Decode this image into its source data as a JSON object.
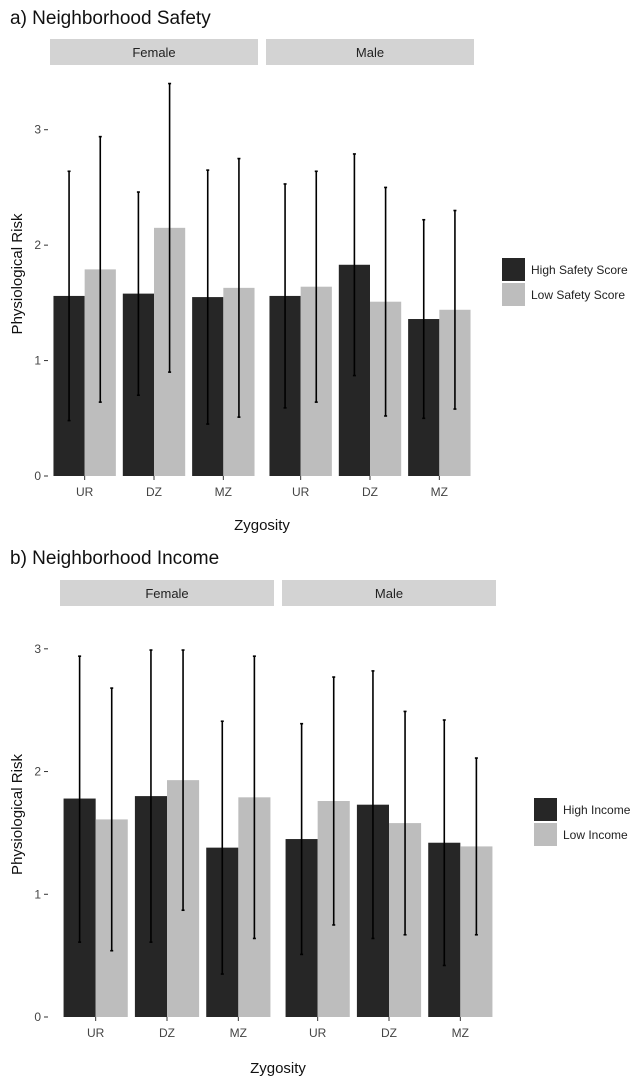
{
  "chart_data": [
    {
      "type": "bar",
      "title": "a) Neighborhood Safety",
      "xlabel": "Zygosity",
      "ylabel": "Physiological Risk",
      "ylim": [
        0,
        3.5
      ],
      "yticks": [
        "0",
        "1",
        "2",
        "3"
      ],
      "ytick_values": [
        0,
        1,
        2,
        3
      ],
      "facets": [
        "Female",
        "Male"
      ],
      "categories": [
        "UR",
        "DZ",
        "MZ"
      ],
      "grid": false,
      "legend_position": "right",
      "colors": {
        "dark": "#262626",
        "light": "#bdbdbd",
        "strip": "#d3d3d3"
      },
      "series": [
        {
          "name": "High Safety Score",
          "color": "#262626",
          "values": [
            [
              1.56,
              1.58,
              1.55
            ],
            [
              1.56,
              1.83,
              1.36
            ]
          ],
          "error_low": [
            [
              0.48,
              0.7,
              0.45
            ],
            [
              0.59,
              0.87,
              0.5
            ]
          ],
          "error_high": [
            [
              2.64,
              2.46,
              2.65
            ],
            [
              2.53,
              2.79,
              2.22
            ]
          ]
        },
        {
          "name": "Low Safety Score",
          "color": "#bdbdbd",
          "values": [
            [
              1.79,
              2.15,
              1.63
            ],
            [
              1.64,
              1.51,
              1.44
            ]
          ],
          "error_low": [
            [
              0.64,
              0.9,
              0.51
            ],
            [
              0.64,
              0.52,
              0.58
            ]
          ],
          "error_high": [
            [
              2.94,
              3.4,
              2.75
            ],
            [
              2.64,
              2.5,
              2.3
            ]
          ]
        }
      ]
    },
    {
      "type": "bar",
      "title": "b) Neighborhood Income",
      "xlabel": "Zygosity",
      "ylabel": "Physiological Risk",
      "ylim": [
        0,
        3.3
      ],
      "yticks": [
        "0",
        "1",
        "2",
        "3"
      ],
      "ytick_values": [
        0,
        1,
        2,
        3
      ],
      "facets": [
        "Female",
        "Male"
      ],
      "categories": [
        "UR",
        "DZ",
        "MZ"
      ],
      "grid": false,
      "legend_position": "right",
      "colors": {
        "dark": "#262626",
        "light": "#bdbdbd",
        "strip": "#d3d3d3"
      },
      "series": [
        {
          "name": "High Income",
          "color": "#262626",
          "values": [
            [
              1.78,
              1.8,
              1.38
            ],
            [
              1.45,
              1.73,
              1.42
            ]
          ],
          "error_low": [
            [
              0.61,
              0.61,
              0.35
            ],
            [
              0.51,
              0.64,
              0.42
            ]
          ],
          "error_high": [
            [
              2.94,
              2.99,
              2.41
            ],
            [
              2.39,
              2.82,
              2.42
            ]
          ]
        },
        {
          "name": "Low Income",
          "color": "#bdbdbd",
          "values": [
            [
              1.61,
              1.93,
              1.79
            ],
            [
              1.76,
              1.58,
              1.39
            ]
          ],
          "error_low": [
            [
              0.54,
              0.87,
              0.64
            ],
            [
              0.75,
              0.67,
              0.67
            ]
          ],
          "error_high": [
            [
              2.68,
              2.99,
              2.94
            ],
            [
              2.77,
              2.49,
              2.11
            ]
          ]
        }
      ]
    }
  ]
}
